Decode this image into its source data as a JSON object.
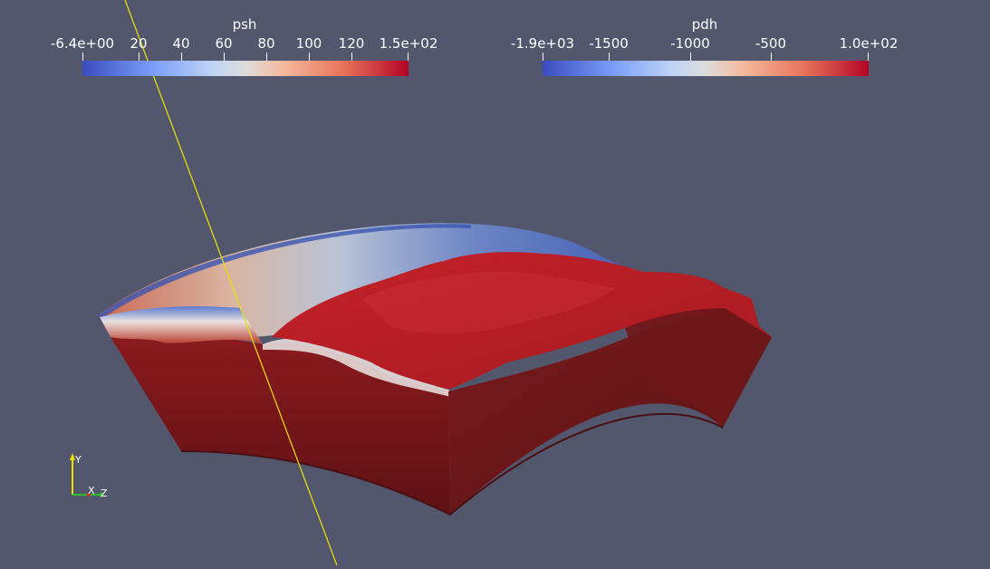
{
  "colorbars": [
    {
      "title": "psh",
      "tick_labels": [
        "-6.4e+00",
        "20",
        "40",
        "60",
        "80",
        "100",
        "120",
        "1.5e+02"
      ]
    },
    {
      "title": "pdh",
      "tick_labels": [
        "-1.9e+03",
        "-1500",
        "-1000",
        "-500",
        "1.0e+02"
      ]
    }
  ],
  "orientation_axes": {
    "y_label": "Y",
    "x_label": "X",
    "z_label": "Z"
  },
  "colors": {
    "background": "#52576e",
    "colormap_low": "#3b4cc0",
    "colormap_mid": "#dddcdc",
    "colormap_high": "#b40426",
    "outline_line": "#e8e000"
  }
}
